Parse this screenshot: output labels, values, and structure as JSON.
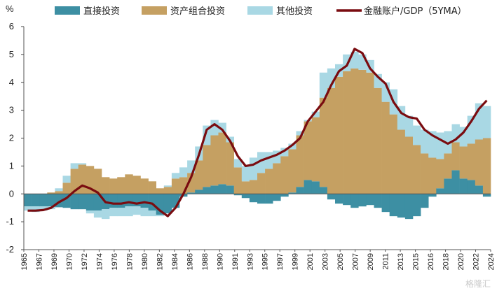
{
  "chart_data": {
    "type": "bar",
    "ylabel": "%",
    "ylim": [
      -2,
      6
    ],
    "yticks": [
      -2,
      -1,
      0,
      1,
      2,
      3,
      4,
      5,
      6
    ],
    "x_range": [
      1965,
      2024
    ],
    "x_tick_labels": [
      "1965",
      "1967",
      "1969",
      "1970",
      "1972",
      "1974",
      "1976",
      "1978",
      "1980",
      "1982",
      "1984",
      "1986",
      "1988",
      "1990",
      "1991",
      "1993",
      "1995",
      "1997",
      "1999",
      "2001",
      "2003",
      "2005",
      "2007",
      "2009",
      "2011",
      "2013",
      "2015",
      "2016",
      "2018",
      "2020",
      "2022",
      "2024"
    ],
    "legend_position": "top",
    "series": [
      {
        "name": "直接投资",
        "kind": "bar",
        "color": "#3d8fa3",
        "x": [
          1965,
          1966,
          1967,
          1968,
          1969,
          1970,
          1971,
          1972,
          1973,
          1974,
          1975,
          1976,
          1977,
          1978,
          1979,
          1980,
          1981,
          1982,
          1983,
          1984,
          1985,
          1986,
          1987,
          1988,
          1989,
          1990,
          1991,
          1992,
          1993,
          1994,
          1995,
          1996,
          1997,
          1998,
          1999,
          2000,
          2001,
          2002,
          2003,
          2004,
          2005,
          2006,
          2007,
          2008,
          2009,
          2010,
          2011,
          2012,
          2013,
          2014,
          2015,
          2016,
          2017,
          2018,
          2019,
          2020,
          2021,
          2022,
          2023,
          2024
        ],
        "values": [
          -0.45,
          -0.45,
          -0.45,
          -0.45,
          -0.48,
          -0.5,
          -0.55,
          -0.55,
          -0.6,
          -0.6,
          -0.55,
          -0.5,
          -0.5,
          -0.45,
          -0.45,
          -0.5,
          -0.6,
          -0.75,
          -0.7,
          -0.5,
          -0.1,
          0.05,
          0.15,
          0.25,
          0.3,
          0.35,
          0.3,
          -0.05,
          -0.15,
          -0.3,
          -0.35,
          -0.35,
          -0.25,
          -0.1,
          0.05,
          0.25,
          0.5,
          0.45,
          0.25,
          -0.2,
          -0.35,
          -0.4,
          -0.5,
          -0.45,
          -0.4,
          -0.5,
          -0.65,
          -0.8,
          -0.85,
          -0.9,
          -0.8,
          -0.5,
          -0.1,
          0.2,
          0.55,
          0.85,
          0.55,
          0.5,
          0.3,
          -0.1
        ]
      },
      {
        "name": "资产组合投资",
        "kind": "bar",
        "color": "#c5a062",
        "x": [
          1965,
          1966,
          1967,
          1968,
          1969,
          1970,
          1971,
          1972,
          1973,
          1974,
          1975,
          1976,
          1977,
          1978,
          1979,
          1980,
          1981,
          1982,
          1983,
          1984,
          1985,
          1986,
          1987,
          1988,
          1989,
          1990,
          1991,
          1992,
          1993,
          1994,
          1995,
          1996,
          1997,
          1998,
          1999,
          2000,
          2001,
          2002,
          2003,
          2004,
          2005,
          2006,
          2007,
          2008,
          2009,
          2010,
          2011,
          2012,
          2013,
          2014,
          2015,
          2016,
          2017,
          2018,
          2019,
          2020,
          2021,
          2022,
          2023,
          2024
        ],
        "values": [
          0,
          0,
          0,
          0.05,
          0.1,
          0.4,
          0.9,
          1.05,
          1.0,
          0.9,
          0.6,
          0.55,
          0.6,
          0.7,
          0.65,
          0.55,
          0.45,
          0.2,
          0.25,
          0.55,
          0.6,
          0.7,
          1.05,
          1.5,
          1.8,
          1.85,
          1.55,
          0.95,
          0.45,
          0.5,
          0.75,
          0.9,
          1.1,
          1.35,
          1.55,
          1.85,
          2.1,
          2.3,
          3.2,
          3.8,
          4.2,
          4.4,
          4.5,
          4.45,
          4.35,
          3.8,
          3.3,
          2.85,
          2.3,
          2.05,
          1.75,
          1.45,
          1.3,
          1.05,
          0.9,
          1.0,
          1.15,
          1.3,
          1.65,
          2.0
        ]
      },
      {
        "name": "其他投资",
        "kind": "bar",
        "color": "#a9d8e4",
        "x": [
          1965,
          1966,
          1967,
          1968,
          1969,
          1970,
          1971,
          1972,
          1973,
          1974,
          1975,
          1976,
          1977,
          1978,
          1979,
          1980,
          1981,
          1982,
          1983,
          1984,
          1985,
          1986,
          1987,
          1988,
          1989,
          1990,
          1991,
          1992,
          1993,
          1994,
          1995,
          1996,
          1997,
          1998,
          1999,
          2000,
          2001,
          2002,
          2003,
          2004,
          2005,
          2006,
          2007,
          2008,
          2009,
          2010,
          2011,
          2012,
          2013,
          2014,
          2015,
          2016,
          2017,
          2018,
          2019,
          2020,
          2021,
          2022,
          2023,
          2024
        ],
        "values": [
          -0.15,
          -0.2,
          -0.15,
          -0.1,
          0.1,
          0.25,
          0.2,
          0.05,
          -0.1,
          -0.25,
          -0.35,
          -0.3,
          -0.3,
          -0.35,
          -0.3,
          -0.3,
          -0.2,
          -0.05,
          0.05,
          0.2,
          0.35,
          0.45,
          0.5,
          0.7,
          0.55,
          0.35,
          0.2,
          0.3,
          0.55,
          0.8,
          0.75,
          0.6,
          0.45,
          0.3,
          0.2,
          0.15,
          0.05,
          0.2,
          0.9,
          0.7,
          0.45,
          0.6,
          0.6,
          0.55,
          0.45,
          0.5,
          0.7,
          0.9,
          0.85,
          0.75,
          0.7,
          0.85,
          0.95,
          0.95,
          0.8,
          0.65,
          0.7,
          1.0,
          1.3,
          1.15
        ]
      },
      {
        "name": "金融账户/GDP（5YMA）",
        "kind": "line",
        "color": "#7a0c10",
        "x": [
          1965,
          1966,
          1967,
          1968,
          1969,
          1970,
          1971,
          1972,
          1973,
          1974,
          1975,
          1976,
          1977,
          1978,
          1979,
          1980,
          1981,
          1982,
          1983,
          1984,
          1985,
          1986,
          1987,
          1988,
          1989,
          1990,
          1991,
          1992,
          1993,
          1994,
          1995,
          1996,
          1997,
          1998,
          1999,
          2000,
          2001,
          2002,
          2003,
          2004,
          2005,
          2006,
          2007,
          2008,
          2009,
          2010,
          2011,
          2012,
          2013,
          2014,
          2015,
          2016,
          2017,
          2018,
          2019,
          2020,
          2021,
          2022,
          2023,
          2024
        ],
        "values": [
          -0.6,
          -0.6,
          -0.58,
          -0.5,
          -0.3,
          -0.15,
          0.1,
          0.3,
          0.2,
          0.05,
          -0.3,
          -0.35,
          -0.35,
          -0.3,
          -0.35,
          -0.3,
          -0.35,
          -0.6,
          -0.8,
          -0.5,
          0.0,
          0.6,
          1.4,
          2.3,
          2.5,
          2.3,
          1.9,
          1.35,
          1.0,
          1.05,
          1.2,
          1.3,
          1.4,
          1.55,
          1.75,
          2.0,
          2.6,
          2.95,
          3.3,
          3.9,
          4.4,
          4.6,
          5.2,
          5.05,
          4.5,
          4.2,
          3.95,
          3.3,
          2.9,
          2.75,
          2.7,
          2.3,
          2.1,
          1.95,
          1.8,
          1.95,
          2.2,
          2.6,
          3.05,
          3.35
        ]
      }
    ]
  },
  "watermark": "格隆汇"
}
